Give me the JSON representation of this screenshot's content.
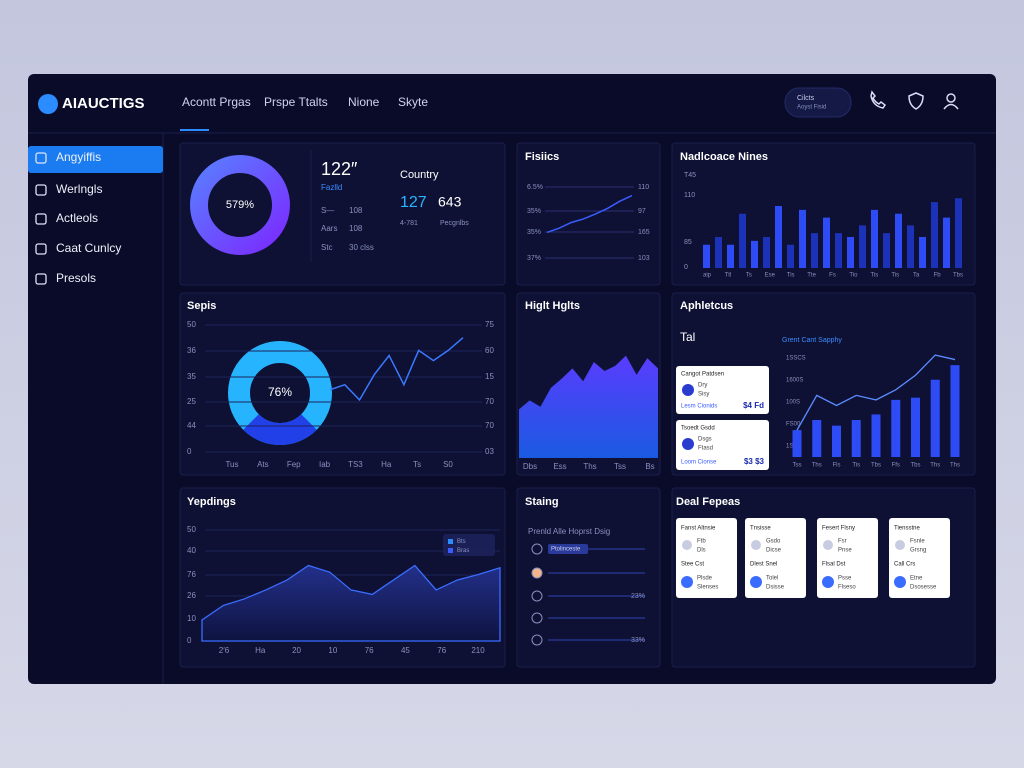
{
  "brand": "AIAUCTIGS",
  "nav": [
    "Acontt Prgas",
    "Prspe Ttalts",
    "Nione",
    "Skyte"
  ],
  "account": [
    "Cilcts",
    "Aoyst Fisid"
  ],
  "sidebar": [
    "Angyiffis",
    "Werlngls",
    "Actleols",
    "Caat Cunlcy",
    "Presols"
  ],
  "summary": {
    "donut_label": "579%",
    "value": "122″",
    "value_sub": "Fazlld",
    "rows": [
      [
        "S—",
        "108"
      ],
      [
        "Aars",
        "108"
      ],
      [
        "Stc",
        "30 clss"
      ]
    ],
    "country": "Country",
    "country_values": [
      "127",
      "643"
    ],
    "country_sub": [
      "4-781",
      "Pecgnlbs"
    ]
  },
  "fisics": {
    "title": "Fisiics",
    "left": [
      "6.5%",
      "35%",
      "35%",
      "37%"
    ],
    "right": [
      "110",
      "97",
      "165",
      "103"
    ],
    "values": [
      36,
      42,
      50,
      55,
      62,
      70,
      80,
      88
    ],
    "ylim": [
      0,
      100
    ],
    "color": "#3b5cff"
  },
  "bars": {
    "title": "Nadlcoace Nines",
    "yticks": [
      "T45",
      "110",
      "85",
      "0"
    ],
    "xlabels": [
      "aip",
      "Ttl",
      "Ts",
      "Ese",
      "Tis",
      "Tte",
      "Fs",
      "Tio",
      "Tis",
      "Tis",
      "Ta",
      "Fb",
      "Tbs"
    ],
    "values": [
      30,
      40,
      30,
      70,
      35,
      40,
      80,
      30,
      75,
      45,
      65,
      45,
      40,
      55,
      75,
      45,
      70,
      55,
      40,
      85,
      65,
      90
    ],
    "ylim": [
      0,
      120
    ],
    "colors": [
      "#2d4cf5",
      "#1c32b8"
    ]
  },
  "septs": {
    "title": "Sepis",
    "left": [
      "50",
      "36",
      "35",
      "25",
      "44",
      "0"
    ],
    "right": [
      "75",
      "60",
      "15",
      "70",
      "70",
      "03"
    ],
    "xlabels": [
      "Tus",
      "Ats",
      "Fep",
      "Iab",
      "TS3",
      "Ha",
      "Ts",
      "S0"
    ],
    "donut_label": "76%",
    "values": [
      49,
      53,
      41,
      61,
      76,
      53,
      80,
      72,
      80,
      90
    ],
    "ylim": [
      0,
      100
    ],
    "color": "#3a78ff"
  },
  "high": {
    "title": "Higlt Hglts",
    "xlabels": [
      "Dbs",
      "Ess",
      "Ths",
      "Tss",
      "Bs"
    ],
    "values": [
      38,
      45,
      40,
      55,
      62,
      70,
      60,
      75,
      68,
      72,
      80,
      65,
      78,
      70
    ],
    "ylim": [
      0,
      100
    ]
  },
  "aphletous": {
    "title": "Aphletcus",
    "subtitle": "Tal",
    "legend": "Grent Cant Sapphy",
    "cards": [
      {
        "title": "Cangot Patdsen",
        "rows": [
          "Dry",
          "Sisy"
        ],
        "foot": "Lesm Cionids",
        "value": "$4 Fd"
      },
      {
        "title": "Tsoedt Gsdd",
        "rows": [
          "Dsgs",
          "Ftasd"
        ],
        "foot": "Loom Cionse",
        "value": "$3 $3"
      }
    ],
    "yticks": [
      "1SSCS",
      "1600S",
      "100S",
      "FS00",
      "1S0S"
    ],
    "xlabels": [
      "Tss",
      "Ths",
      "Fls",
      "Tis",
      "Tbs",
      "Ffs",
      "Tbs",
      "Ths",
      "Ths"
    ],
    "bars": [
      24,
      33,
      28,
      33,
      38,
      51,
      53,
      69,
      82
    ],
    "line": [
      24,
      55,
      46,
      55,
      51,
      60,
      73,
      91,
      87
    ],
    "ylim": [
      0,
      100
    ],
    "color": "#2d4cf5"
  },
  "yepdings": {
    "title": "Yepdings",
    "left": [
      "50",
      "40",
      "76",
      "26",
      "10",
      "0"
    ],
    "xlabels": [
      "2′6",
      "Ha",
      "20",
      "10",
      "76",
      "45",
      "76",
      "210"
    ],
    "legend": [
      "Bts",
      "Bras"
    ],
    "values": [
      9.5,
      16,
      19,
      23,
      27.5,
      34,
      31,
      23,
      21,
      27.5,
      34,
      23,
      27.5,
      30,
      33
    ],
    "ylim": [
      0,
      50
    ]
  },
  "staing": {
    "title": "Staing",
    "subtitle": "Prenld Alle Hoprst Dsig",
    "pill": "Ptolinceste",
    "percents": [
      "23%",
      "33%"
    ]
  },
  "deal": {
    "title": "Deal Fepeas",
    "cards": [
      {
        "title": "Fanst Altnsie",
        "l1": "Ftb",
        "l2": "Dls",
        "h2": "Stee Cst",
        "m1": "Plsde",
        "m2": "Slenses"
      },
      {
        "title": "Tnsisse",
        "l1": "Gsdo",
        "l2": "Dicse",
        "h2": "Dlest Snel",
        "m1": "Tolel",
        "m2": "Dsisse"
      },
      {
        "title": "Fesert Flsny",
        "l1": "Fsr",
        "l2": "Pnse",
        "h2": "Flsal Dst",
        "m1": "Psse",
        "m2": "Flseso"
      },
      {
        "title": "Tiensstne",
        "l1": "Fsnle",
        "l2": "Grsng",
        "h2": "Call Crs",
        "m1": "Etne",
        "m2": "Dsosesse"
      }
    ]
  }
}
